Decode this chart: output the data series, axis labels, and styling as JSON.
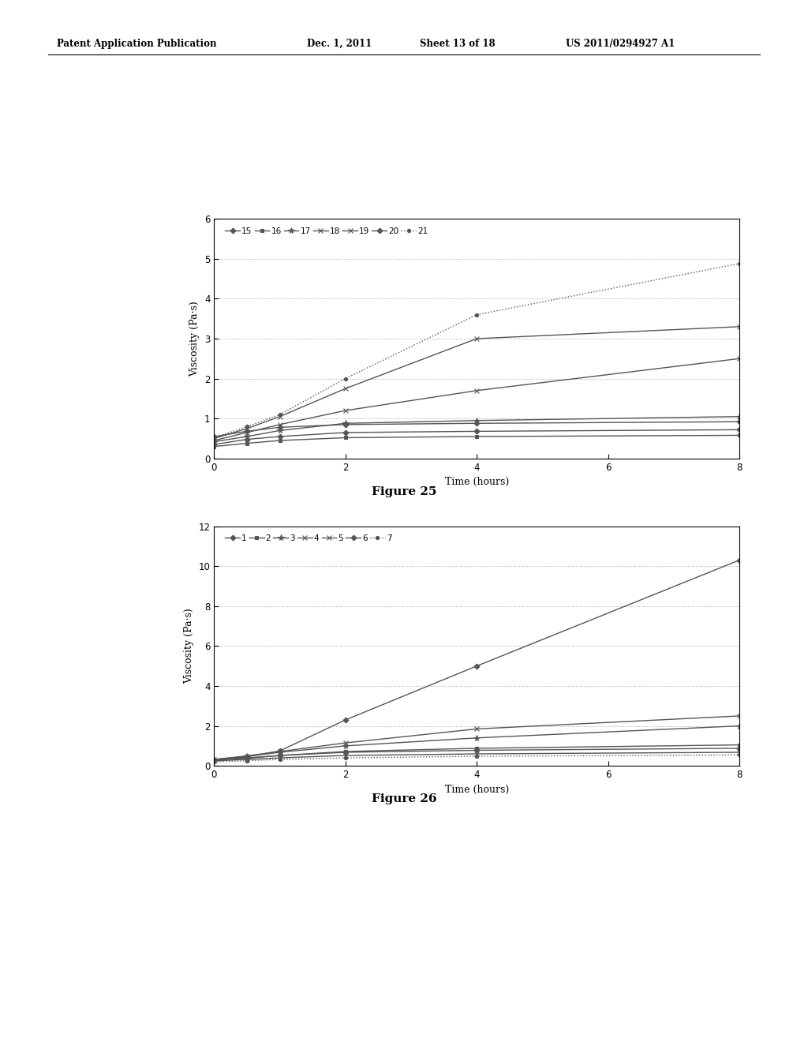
{
  "fig25": {
    "title": "Figure 25",
    "xlabel": "Time (hours)",
    "ylabel": "Viscosity (Pa·s)",
    "xlim": [
      0,
      8
    ],
    "ylim": [
      0,
      6
    ],
    "xticks": [
      0,
      2,
      4,
      6,
      8
    ],
    "yticks": [
      0,
      1,
      2,
      3,
      4,
      5,
      6
    ],
    "series": [
      {
        "label": "15",
        "x": [
          0,
          0.5,
          1,
          2,
          4,
          8
        ],
        "y": [
          0.35,
          0.48,
          0.55,
          0.65,
          0.68,
          0.72
        ]
      },
      {
        "label": "16",
        "x": [
          0,
          0.5,
          1,
          2,
          4,
          8
        ],
        "y": [
          0.3,
          0.38,
          0.45,
          0.52,
          0.55,
          0.58
        ]
      },
      {
        "label": "17",
        "x": [
          0,
          0.5,
          1,
          2,
          4,
          8
        ],
        "y": [
          0.42,
          0.55,
          0.7,
          0.88,
          0.95,
          1.05
        ]
      },
      {
        "label": "18",
        "x": [
          0,
          0.5,
          1,
          2,
          4,
          8
        ],
        "y": [
          0.5,
          0.75,
          1.05,
          1.75,
          3.0,
          3.3
        ]
      },
      {
        "label": "19",
        "x": [
          0,
          0.5,
          1,
          2,
          4,
          8
        ],
        "y": [
          0.45,
          0.65,
          0.85,
          1.2,
          1.7,
          2.5
        ]
      },
      {
        "label": "20",
        "x": [
          0,
          0.5,
          1,
          2,
          4,
          8
        ],
        "y": [
          0.55,
          0.68,
          0.78,
          0.85,
          0.88,
          0.92
        ]
      },
      {
        "label": "21",
        "x": [
          0,
          0.5,
          1,
          2,
          4,
          8
        ],
        "y": [
          0.52,
          0.8,
          1.1,
          2.0,
          3.6,
          4.88
        ]
      }
    ]
  },
  "fig26": {
    "title": "Figure 26",
    "xlabel": "Time (hours)",
    "ylabel": "Viscosity (Pa·s)",
    "xlim": [
      0,
      8
    ],
    "ylim": [
      0,
      12
    ],
    "xticks": [
      0,
      2,
      4,
      6,
      8
    ],
    "yticks": [
      0,
      2,
      4,
      6,
      8,
      10,
      12
    ],
    "series": [
      {
        "label": "1",
        "x": [
          0,
          0.5,
          1,
          2,
          4,
          8
        ],
        "y": [
          0.3,
          0.45,
          0.75,
          2.3,
          5.0,
          10.3
        ]
      },
      {
        "label": "2",
        "x": [
          0,
          0.5,
          1,
          2,
          4,
          8
        ],
        "y": [
          0.28,
          0.38,
          0.52,
          0.72,
          0.88,
          1.05
        ]
      },
      {
        "label": "3",
        "x": [
          0,
          0.5,
          1,
          2,
          4,
          8
        ],
        "y": [
          0.32,
          0.48,
          0.68,
          1.0,
          1.4,
          2.0
        ]
      },
      {
        "label": "4",
        "x": [
          0,
          0.5,
          1,
          2,
          4,
          8
        ],
        "y": [
          0.25,
          0.32,
          0.4,
          0.52,
          0.6,
          0.68
        ]
      },
      {
        "label": "5",
        "x": [
          0,
          0.5,
          1,
          2,
          4,
          8
        ],
        "y": [
          0.32,
          0.5,
          0.72,
          1.15,
          1.85,
          2.5
        ]
      },
      {
        "label": "6",
        "x": [
          0,
          0.5,
          1,
          2,
          4,
          8
        ],
        "y": [
          0.3,
          0.4,
          0.52,
          0.68,
          0.78,
          0.88
        ]
      },
      {
        "label": "7",
        "x": [
          0,
          0.5,
          1,
          2,
          4,
          8
        ],
        "y": [
          0.2,
          0.26,
          0.32,
          0.4,
          0.48,
          0.55
        ]
      }
    ]
  },
  "bg_color": "#ffffff",
  "line_color": "#555555",
  "grid_color": "#999999",
  "header_left": "Patent Application Publication",
  "header_mid1": "Dec. 1, 2011",
  "header_mid2": "Sheet 13 of 18",
  "header_right": "US 2011/0294927 A1"
}
